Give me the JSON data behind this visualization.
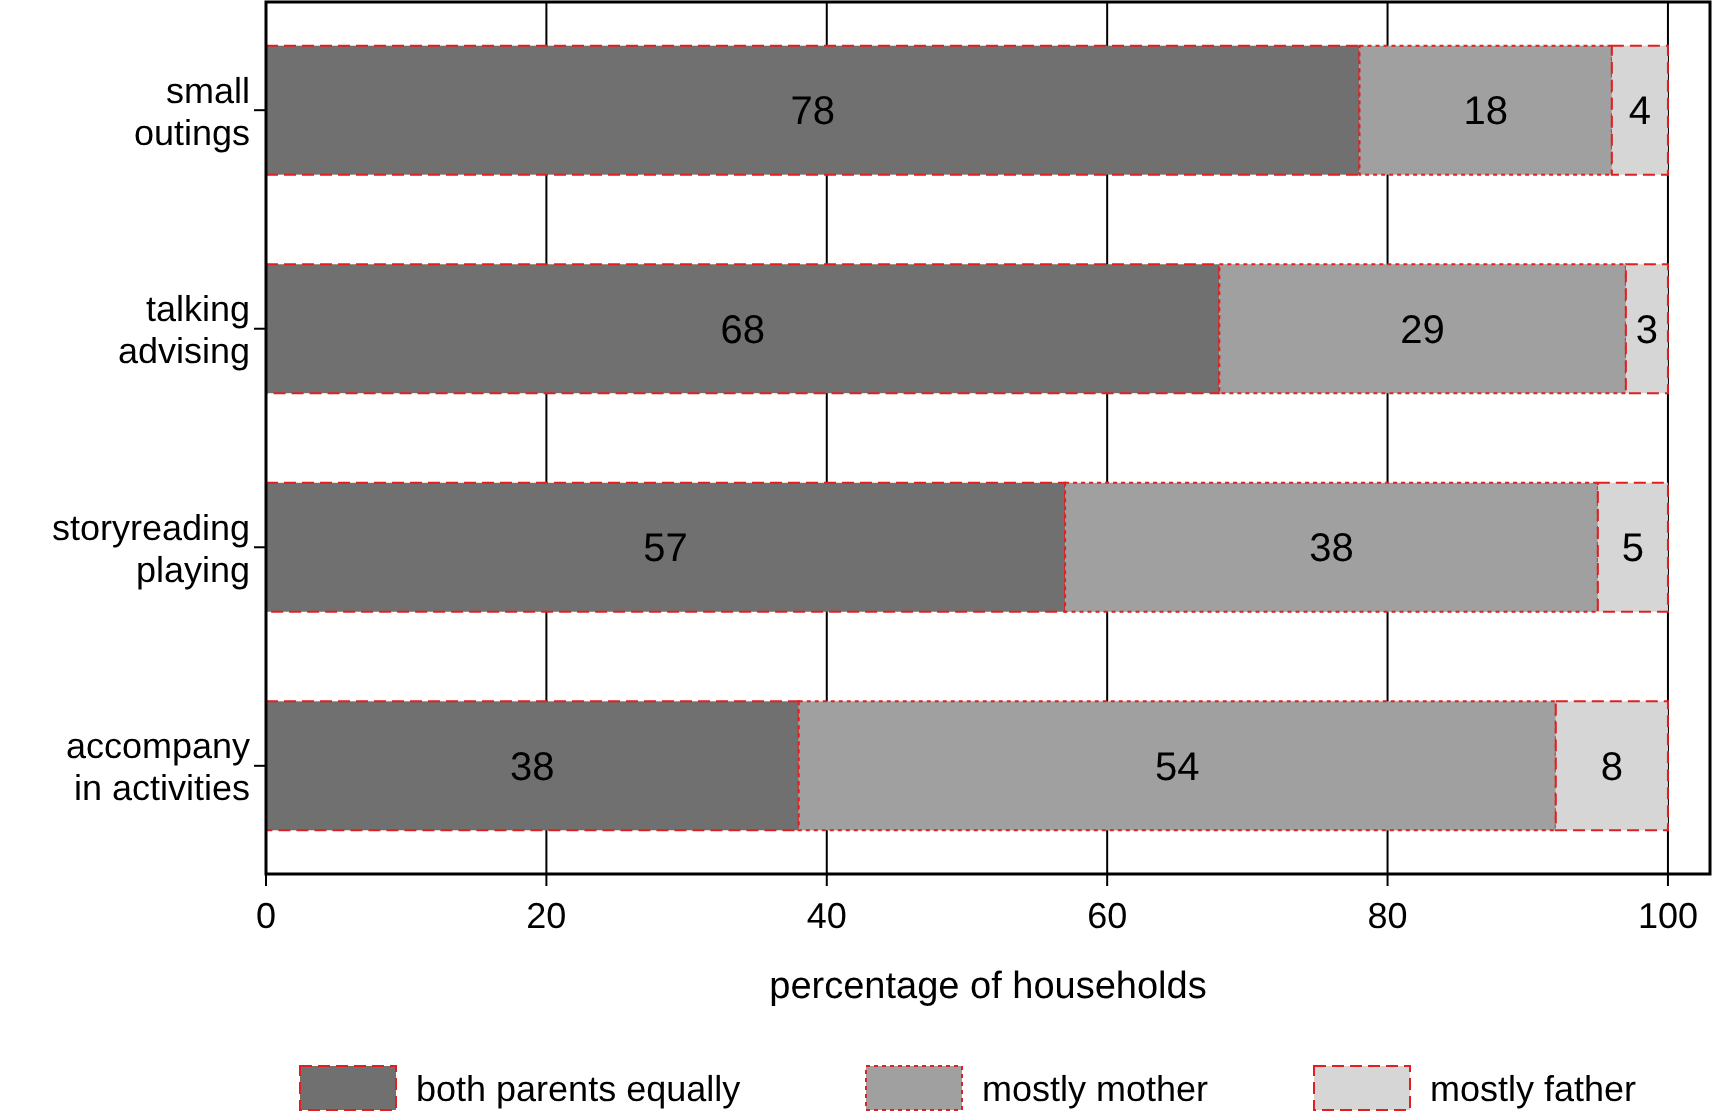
{
  "chart_data": {
    "type": "bar",
    "orientation": "horizontal",
    "stacked": true,
    "xlabel": "percentage of households",
    "categories": [
      "small\noutings",
      "talking\nadvising",
      "storyreading\nplaying",
      "accompany\nin activities"
    ],
    "series": [
      {
        "name": "both parents equally",
        "color": "#707070",
        "values": [
          78,
          68,
          57,
          38
        ]
      },
      {
        "name": "mostly mother",
        "color": "#a0a0a0",
        "values": [
          18,
          29,
          38,
          54
        ]
      },
      {
        "name": "mostly father",
        "color": "#d6d6d6",
        "values": [
          4,
          3,
          5,
          8
        ]
      }
    ],
    "xlim": [
      0,
      103
    ],
    "xticks": [
      0,
      20,
      40,
      60,
      80,
      100
    ],
    "grid": "x",
    "legend": "bottom",
    "data_labels": true
  }
}
